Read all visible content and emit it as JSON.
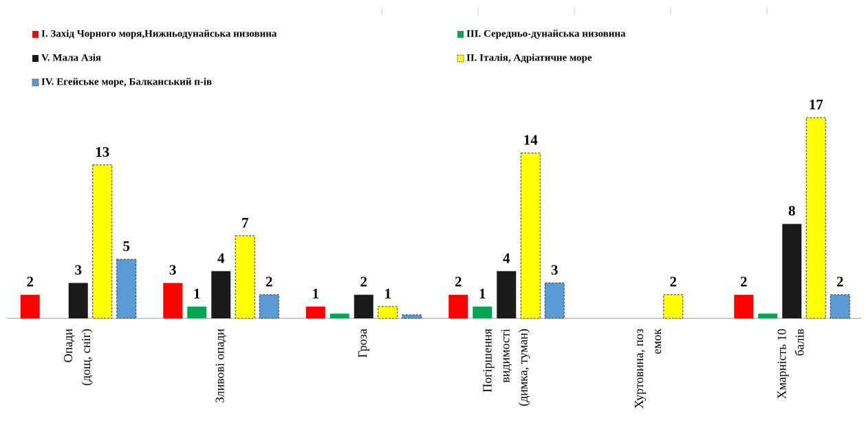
{
  "chart_data": {
    "type": "bar",
    "categories": [
      [
        "Опади",
        "(дощ, сніг)"
      ],
      [
        "Зливові опади"
      ],
      [
        "Гроза"
      ],
      [
        "Погіршення",
        "видимості",
        "(димка, туман)"
      ],
      [
        "Хуртовина, поз",
        "емок"
      ],
      [
        "Хмарність 10",
        "балів"
      ]
    ],
    "series": [
      {
        "name": "I. Захід Чорного моря,Нижньодунайська низовина",
        "color": "#ff0000",
        "values": [
          2,
          3,
          1,
          2,
          null,
          2
        ],
        "value_labels": [
          "2",
          "3",
          "1",
          "2",
          null,
          "2"
        ]
      },
      {
        "name": "III.  Середньо-дунайська низовина",
        "color": "#00a651",
        "values": [
          null,
          1,
          0.4,
          1,
          null,
          0.4
        ],
        "value_labels": [
          null,
          "1",
          null,
          "1",
          null,
          null
        ]
      },
      {
        "name": "V.   Мала Азія",
        "color": "#1a1a1a",
        "values": [
          3,
          4,
          2,
          4,
          null,
          8
        ],
        "value_labels": [
          "3",
          "4",
          "2",
          "4",
          null,
          "8"
        ]
      },
      {
        "name": "II. Італія, Адріатичне море",
        "color": "#ffff00",
        "values": [
          13,
          7,
          1,
          14,
          2,
          17
        ],
        "value_labels": [
          "13",
          "7",
          "1",
          "14",
          "2",
          "17"
        ]
      },
      {
        "name": "IV. Егейське море, Балканський п-ів",
        "color": "#5b9bd5",
        "values": [
          5,
          2,
          0.3,
          3,
          null,
          2
        ],
        "value_labels": [
          "5",
          "2",
          null,
          "3",
          null,
          "2"
        ]
      }
    ],
    "ylim": [
      0,
      18
    ]
  }
}
